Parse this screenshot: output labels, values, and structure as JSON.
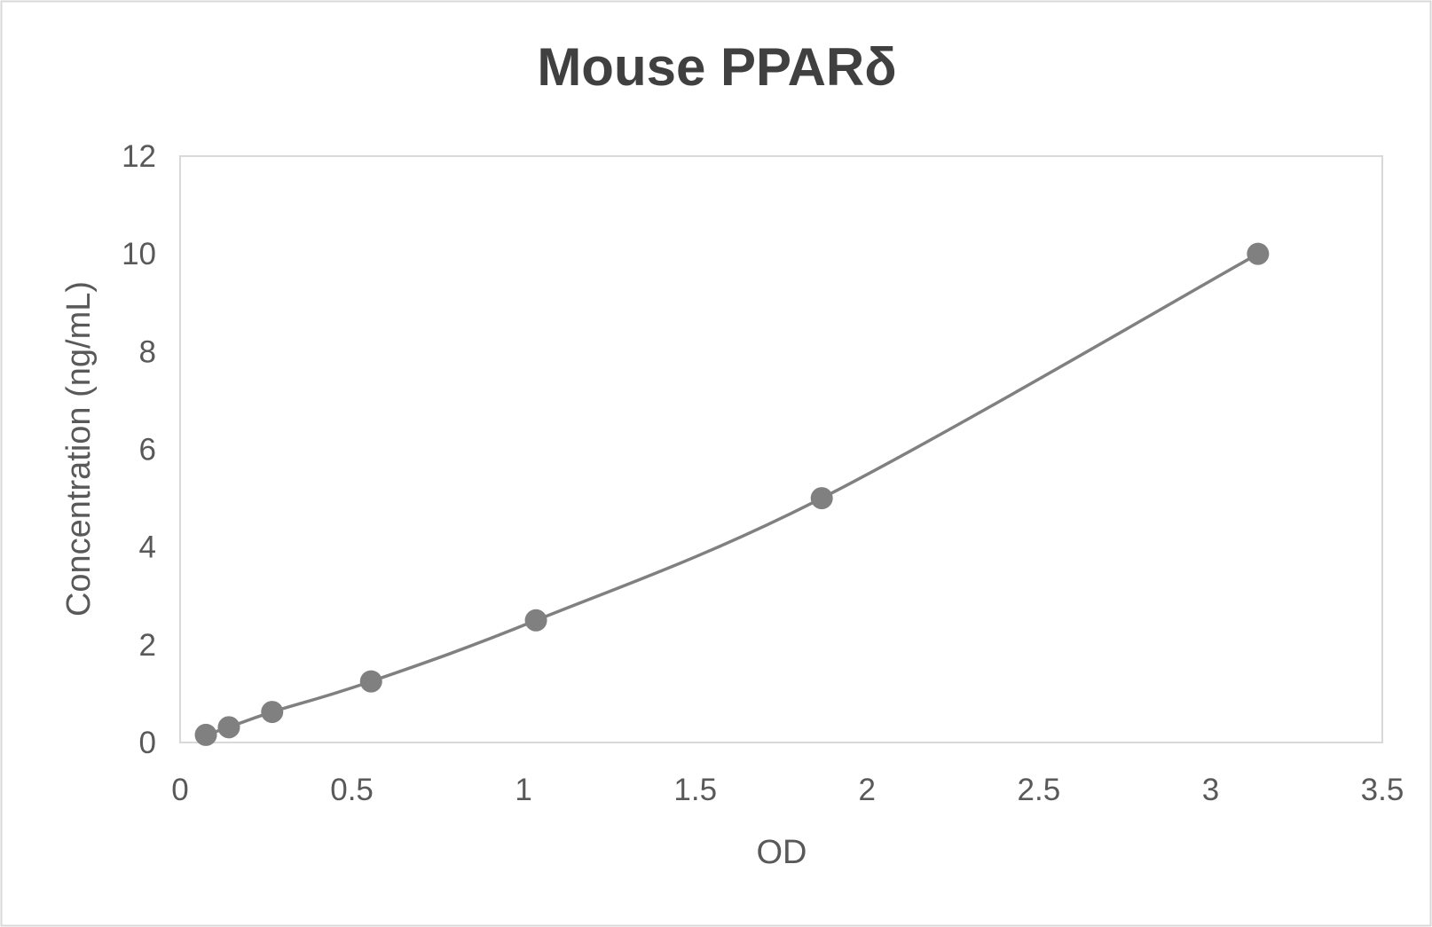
{
  "chart_data": {
    "type": "scatter",
    "title": "Mouse PPARδ",
    "xlabel": "OD",
    "ylabel": "Concentration (ng/mL)",
    "xlim": [
      0,
      3.5
    ],
    "ylim": [
      0,
      12
    ],
    "xticks": [
      "0",
      "0.5",
      "1",
      "1.5",
      "2",
      "2.5",
      "3",
      "3.5"
    ],
    "yticks": [
      "0",
      "2",
      "4",
      "6",
      "8",
      "10",
      "12"
    ],
    "grid": false,
    "legend": "none",
    "smoothed_line": true,
    "series": [
      {
        "x": [
          0.075,
          0.142,
          0.268,
          0.556,
          1.036,
          1.868,
          3.138
        ],
        "y": [
          0.156,
          0.312,
          0.625,
          1.25,
          2.5,
          5,
          10
        ],
        "color": "#808080"
      }
    ],
    "colors": {
      "series": "#808080",
      "plot_border": "#d9d9d9",
      "text": "#595959",
      "title": "#404040"
    }
  }
}
